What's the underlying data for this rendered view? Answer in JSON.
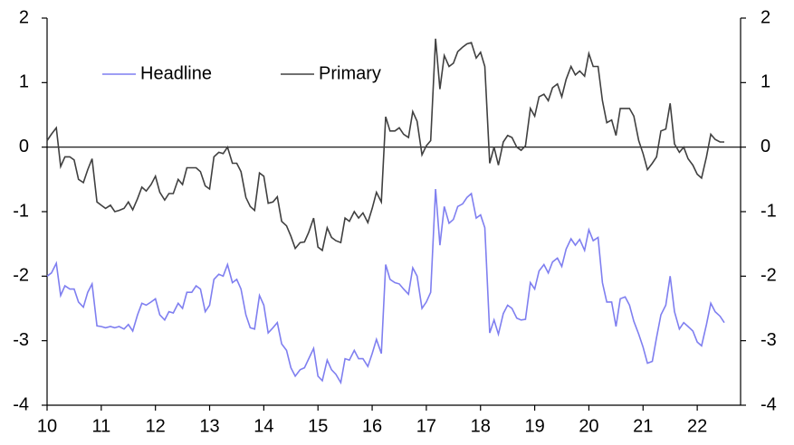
{
  "chart_data": {
    "type": "line",
    "x": [
      10.0,
      10.08,
      10.17,
      10.25,
      10.33,
      10.42,
      10.5,
      10.58,
      10.67,
      10.75,
      10.83,
      10.92,
      11.0,
      11.08,
      11.17,
      11.25,
      11.33,
      11.42,
      11.5,
      11.58,
      11.67,
      11.75,
      11.83,
      11.92,
      12.0,
      12.08,
      12.17,
      12.25,
      12.33,
      12.42,
      12.5,
      12.58,
      12.67,
      12.75,
      12.83,
      12.92,
      13.0,
      13.08,
      13.17,
      13.25,
      13.33,
      13.42,
      13.5,
      13.58,
      13.67,
      13.75,
      13.83,
      13.92,
      14.0,
      14.08,
      14.17,
      14.25,
      14.33,
      14.42,
      14.5,
      14.58,
      14.67,
      14.75,
      14.83,
      14.92,
      15.0,
      15.08,
      15.17,
      15.25,
      15.33,
      15.42,
      15.5,
      15.58,
      15.67,
      15.75,
      15.83,
      15.92,
      16.0,
      16.08,
      16.17,
      16.25,
      16.33,
      16.42,
      16.5,
      16.58,
      16.67,
      16.75,
      16.83,
      16.92,
      17.0,
      17.08,
      17.17,
      17.25,
      17.33,
      17.42,
      17.5,
      17.58,
      17.67,
      17.75,
      17.83,
      17.92,
      18.0,
      18.08,
      18.17,
      18.25,
      18.33,
      18.42,
      18.5,
      18.58,
      18.67,
      18.75,
      18.83,
      18.92,
      19.0,
      19.08,
      19.17,
      19.25,
      19.33,
      19.42,
      19.5,
      19.58,
      19.67,
      19.75,
      19.83,
      19.92,
      20.0,
      20.08,
      20.17,
      20.25,
      20.33,
      20.42,
      20.5,
      20.58,
      20.67,
      20.75,
      20.83,
      20.92,
      21.0,
      21.08,
      21.17,
      21.25,
      21.33,
      21.42,
      21.5,
      21.58,
      21.67,
      21.75,
      21.83,
      21.92,
      22.0,
      22.08,
      22.17,
      22.25,
      22.33,
      22.42,
      22.5
    ],
    "series": [
      {
        "name": "Headline",
        "color": "#7f7ff0",
        "values": [
          -2.0,
          -1.95,
          -1.8,
          -2.3,
          -2.15,
          -2.2,
          -2.2,
          -2.4,
          -2.48,
          -2.25,
          -2.12,
          -2.77,
          -2.78,
          -2.8,
          -2.78,
          -2.8,
          -2.78,
          -2.82,
          -2.75,
          -2.85,
          -2.6,
          -2.42,
          -2.45,
          -2.4,
          -2.35,
          -2.6,
          -2.68,
          -2.55,
          -2.57,
          -2.42,
          -2.5,
          -2.25,
          -2.25,
          -2.15,
          -2.2,
          -2.55,
          -2.45,
          -2.05,
          -1.97,
          -2.0,
          -1.82,
          -2.1,
          -2.05,
          -2.2,
          -2.6,
          -2.8,
          -2.82,
          -2.3,
          -2.45,
          -2.88,
          -2.8,
          -2.72,
          -3.05,
          -3.15,
          -3.42,
          -3.55,
          -3.45,
          -3.42,
          -3.28,
          -3.12,
          -3.55,
          -3.62,
          -3.3,
          -3.45,
          -3.52,
          -3.65,
          -3.28,
          -3.3,
          -3.15,
          -3.28,
          -3.28,
          -3.4,
          -3.2,
          -2.98,
          -3.2,
          -1.82,
          -2.05,
          -2.1,
          -2.12,
          -2.2,
          -2.28,
          -1.87,
          -2.0,
          -2.5,
          -2.4,
          -2.25,
          -0.65,
          -1.52,
          -0.92,
          -1.18,
          -1.12,
          -0.92,
          -0.88,
          -0.78,
          -0.72,
          -1.1,
          -1.05,
          -1.25,
          -2.88,
          -2.68,
          -2.9,
          -2.58,
          -2.45,
          -2.5,
          -2.65,
          -2.68,
          -2.67,
          -2.1,
          -2.2,
          -1.92,
          -1.82,
          -1.95,
          -1.78,
          -1.72,
          -1.85,
          -1.58,
          -1.42,
          -1.52,
          -1.43,
          -1.6,
          -1.28,
          -1.45,
          -1.4,
          -2.1,
          -2.4,
          -2.4,
          -2.78,
          -2.35,
          -2.32,
          -2.45,
          -2.7,
          -2.9,
          -3.1,
          -3.35,
          -3.32,
          -2.95,
          -2.6,
          -2.45,
          -2.0,
          -2.55,
          -2.82,
          -2.72,
          -2.78,
          -2.85,
          -3.02,
          -3.08,
          -2.75,
          -2.42,
          -2.55,
          -2.62,
          -2.72
        ]
      },
      {
        "name": "Primary",
        "color": "#404040",
        "values": [
          0.1,
          0.2,
          0.3,
          -0.3,
          -0.15,
          -0.15,
          -0.2,
          -0.5,
          -0.55,
          -0.35,
          -0.18,
          -0.85,
          -0.9,
          -0.95,
          -0.9,
          -1.0,
          -0.98,
          -0.95,
          -0.85,
          -0.97,
          -0.8,
          -0.62,
          -0.68,
          -0.58,
          -0.45,
          -0.7,
          -0.82,
          -0.72,
          -0.72,
          -0.5,
          -0.58,
          -0.32,
          -0.32,
          -0.32,
          -0.38,
          -0.6,
          -0.65,
          -0.15,
          -0.08,
          -0.1,
          0.0,
          -0.25,
          -0.25,
          -0.38,
          -0.78,
          -0.92,
          -0.98,
          -0.4,
          -0.45,
          -0.87,
          -0.85,
          -0.77,
          -1.15,
          -1.22,
          -1.38,
          -1.57,
          -1.48,
          -1.47,
          -1.32,
          -1.1,
          -1.55,
          -1.6,
          -1.25,
          -1.4,
          -1.45,
          -1.48,
          -1.1,
          -1.15,
          -1.0,
          -1.1,
          -1.02,
          -1.17,
          -0.95,
          -0.7,
          -0.85,
          0.47,
          0.25,
          0.25,
          0.3,
          0.2,
          0.15,
          0.55,
          0.4,
          -0.12,
          0.02,
          0.1,
          1.68,
          0.9,
          1.42,
          1.25,
          1.3,
          1.48,
          1.55,
          1.6,
          1.62,
          1.38,
          1.47,
          1.25,
          -0.25,
          0.0,
          -0.28,
          0.08,
          0.18,
          0.15,
          0.0,
          -0.05,
          0.02,
          0.6,
          0.48,
          0.78,
          0.82,
          0.72,
          0.92,
          0.98,
          0.78,
          1.05,
          1.25,
          1.12,
          1.18,
          1.1,
          1.45,
          1.25,
          1.25,
          0.72,
          0.38,
          0.42,
          0.18,
          0.6,
          0.6,
          0.6,
          0.48,
          0.1,
          -0.1,
          -0.35,
          -0.25,
          -0.15,
          0.25,
          0.28,
          0.68,
          0.05,
          -0.08,
          0.0,
          -0.18,
          -0.28,
          -0.42,
          -0.48,
          -0.15,
          0.2,
          0.12,
          0.08,
          0.08
        ]
      }
    ],
    "xlim": [
      10,
      22.8
    ],
    "xticks": [
      10,
      11,
      12,
      13,
      14,
      15,
      16,
      17,
      18,
      19,
      20,
      21,
      22
    ],
    "ylim": [
      -4,
      2
    ],
    "yticks": [
      2,
      1,
      0,
      -1,
      -2,
      -3,
      -4
    ],
    "y2lim": [
      -4,
      2
    ],
    "y2ticks": [
      2,
      1,
      0,
      -1,
      -2,
      -3,
      -4
    ]
  }
}
